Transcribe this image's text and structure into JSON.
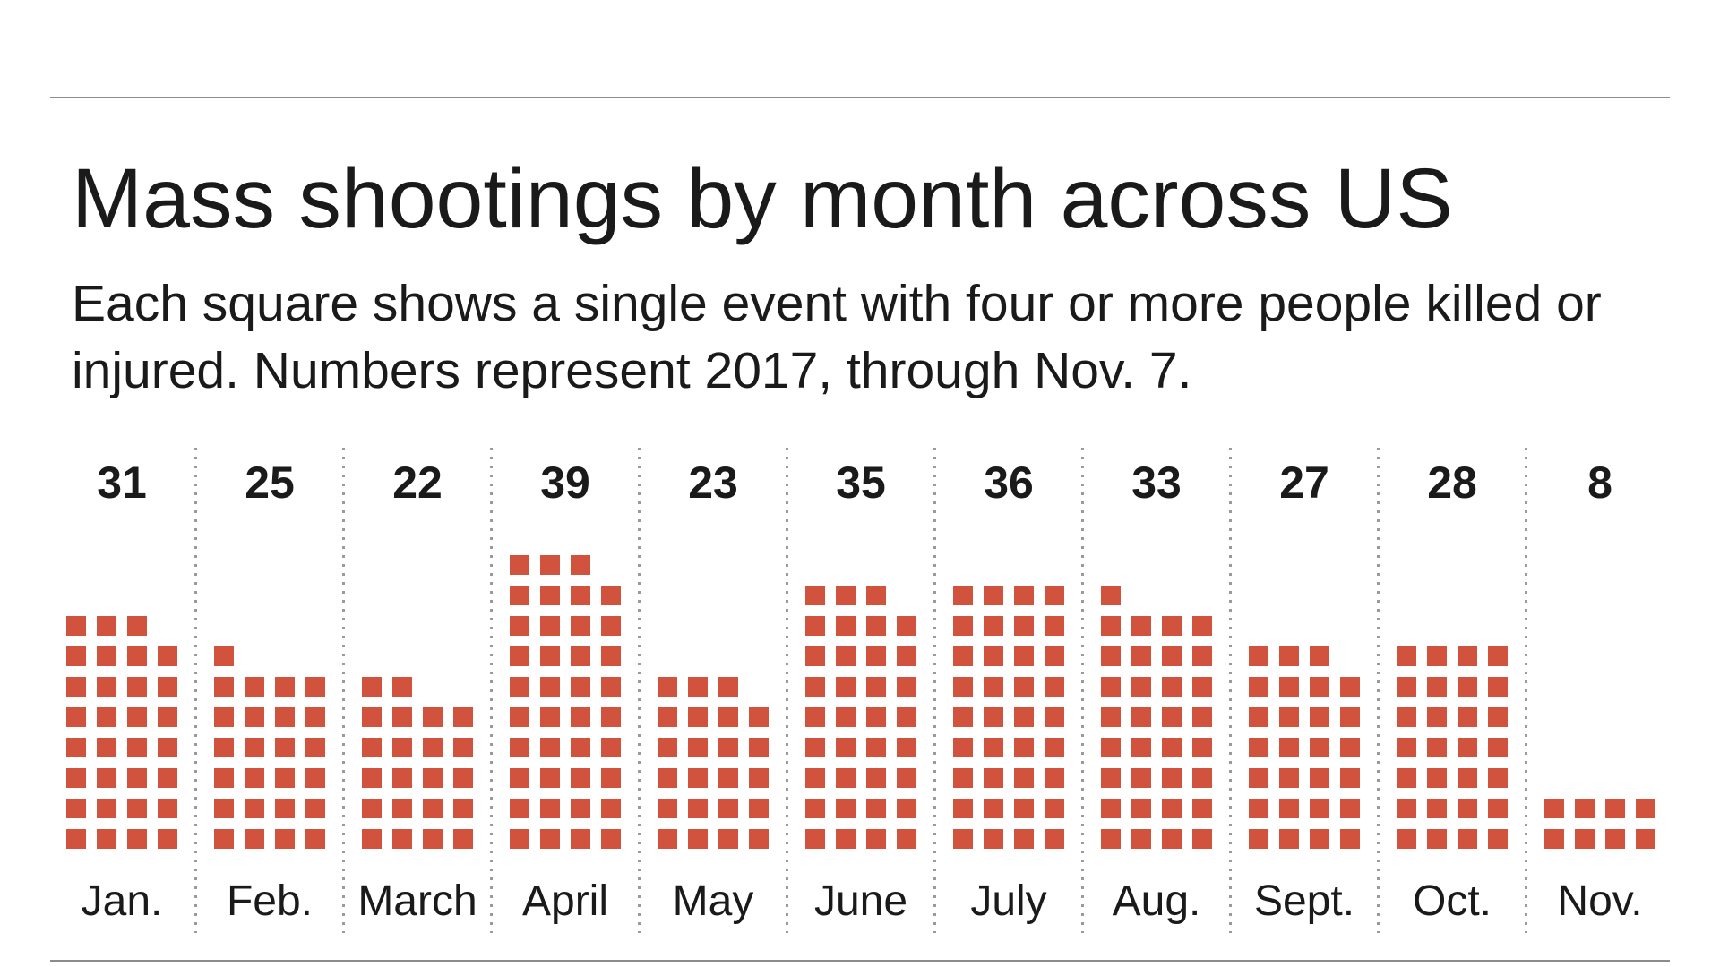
{
  "title": "Mass shootings by month across US",
  "subtitle": "Each square shows a single event with four or more people killed or injured. Numbers represent 2017, through Nov. 7.",
  "colors": {
    "square": "#d2533d",
    "separator": "#9a9a9a",
    "rule": "#8c8c8c",
    "text": "#1a1a1a"
  },
  "chart_data": {
    "type": "bar",
    "categories": [
      "Jan.",
      "Feb.",
      "March",
      "April",
      "May",
      "June",
      "July",
      "Aug.",
      "Sept.",
      "Oct.",
      "Nov."
    ],
    "values": [
      31,
      25,
      22,
      39,
      23,
      35,
      36,
      33,
      27,
      28,
      8
    ],
    "unit": "single event per square",
    "columns_per_month": 4
  }
}
